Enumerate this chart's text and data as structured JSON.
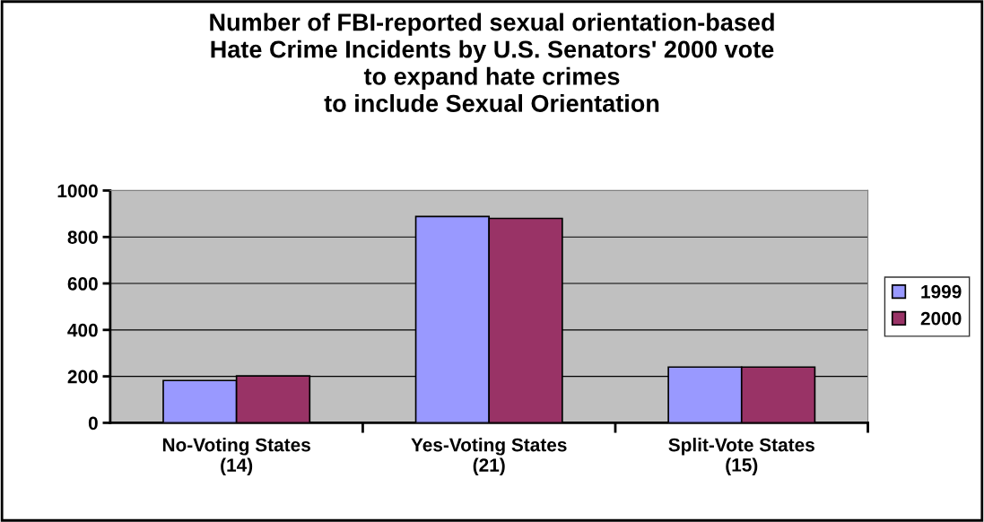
{
  "chart_data": {
    "type": "bar",
    "title": "Number of FBI-reported sexual orientation-based\nHate Crime Incidents by U.S. Senators' 2000 vote\nto expand hate crimes\nto include Sexual Orientation",
    "categories": [
      "No-Voting States\n(14)",
      "Yes-Voting States\n(21)",
      "Split-Vote States\n(15)"
    ],
    "series": [
      {
        "name": "1999",
        "color": "#9999ff",
        "values": [
          182,
          888,
          240
        ]
      },
      {
        "name": "2000",
        "color": "#993366",
        "values": [
          202,
          880,
          240
        ]
      }
    ],
    "ylim": [
      0,
      1000
    ],
    "yticks": [
      0,
      200,
      400,
      600,
      800,
      1000
    ],
    "grid": "y",
    "legend": "right"
  }
}
